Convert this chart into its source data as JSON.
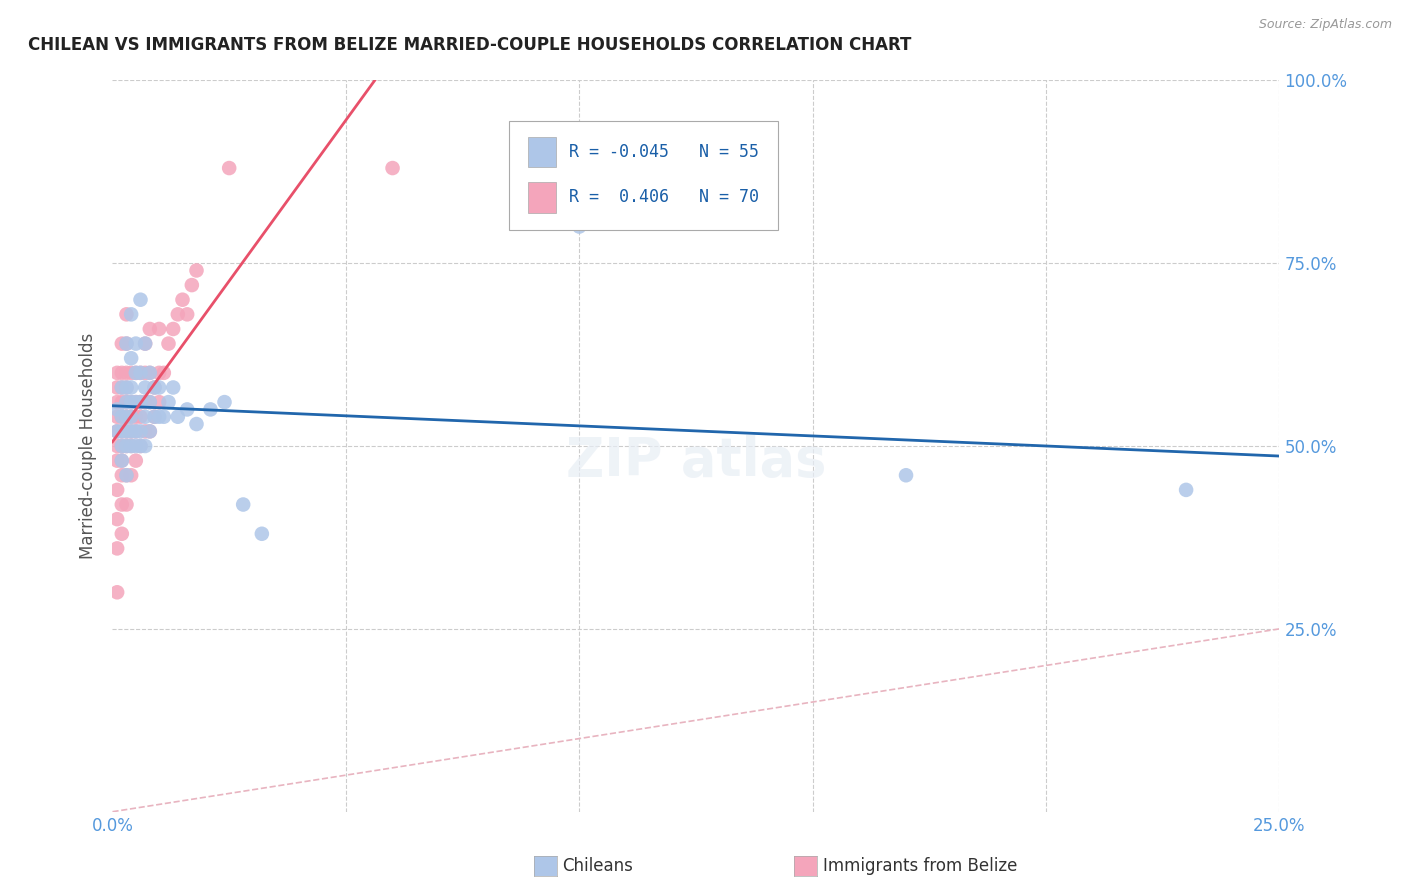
{
  "title": "CHILEAN VS IMMIGRANTS FROM BELIZE MARRIED-COUPLE HOUSEHOLDS CORRELATION CHART",
  "source": "Source: ZipAtlas.com",
  "ylabel": "Married-couple Households",
  "xlim": [
    0.0,
    0.25
  ],
  "ylim": [
    0.0,
    1.0
  ],
  "legend_R_chileans": "-0.045",
  "legend_N_chileans": "55",
  "legend_R_belize": "0.406",
  "legend_N_belize": "70",
  "chilean_color": "#aec6e8",
  "belize_color": "#f4a5bb",
  "chilean_line_color": "#2166ac",
  "belize_line_color": "#e8506a",
  "diagonal_color": "#e8b4c0",
  "background_color": "#ffffff",
  "grid_color": "#cccccc",
  "chileans_x": [
    0.001,
    0.001,
    0.002,
    0.002,
    0.002,
    0.002,
    0.002,
    0.003,
    0.003,
    0.003,
    0.003,
    0.003,
    0.003,
    0.003,
    0.004,
    0.004,
    0.004,
    0.004,
    0.004,
    0.004,
    0.004,
    0.005,
    0.005,
    0.005,
    0.005,
    0.005,
    0.006,
    0.006,
    0.006,
    0.006,
    0.006,
    0.007,
    0.007,
    0.007,
    0.007,
    0.008,
    0.008,
    0.008,
    0.009,
    0.009,
    0.01,
    0.01,
    0.011,
    0.012,
    0.013,
    0.014,
    0.016,
    0.018,
    0.021,
    0.024,
    0.028,
    0.032,
    0.1,
    0.17,
    0.23
  ],
  "chileans_y": [
    0.52,
    0.55,
    0.48,
    0.5,
    0.52,
    0.54,
    0.58,
    0.46,
    0.5,
    0.52,
    0.54,
    0.56,
    0.58,
    0.64,
    0.5,
    0.52,
    0.54,
    0.56,
    0.58,
    0.62,
    0.68,
    0.5,
    0.52,
    0.56,
    0.6,
    0.64,
    0.5,
    0.52,
    0.56,
    0.6,
    0.7,
    0.5,
    0.54,
    0.58,
    0.64,
    0.52,
    0.56,
    0.6,
    0.54,
    0.58,
    0.54,
    0.58,
    0.54,
    0.56,
    0.58,
    0.54,
    0.55,
    0.53,
    0.55,
    0.56,
    0.42,
    0.38,
    0.8,
    0.46,
    0.44
  ],
  "belize_x": [
    0.001,
    0.001,
    0.001,
    0.001,
    0.001,
    0.001,
    0.001,
    0.001,
    0.001,
    0.001,
    0.001,
    0.002,
    0.002,
    0.002,
    0.002,
    0.002,
    0.002,
    0.002,
    0.002,
    0.002,
    0.002,
    0.002,
    0.003,
    0.003,
    0.003,
    0.003,
    0.003,
    0.003,
    0.003,
    0.003,
    0.003,
    0.003,
    0.004,
    0.004,
    0.004,
    0.004,
    0.004,
    0.004,
    0.005,
    0.005,
    0.005,
    0.005,
    0.005,
    0.006,
    0.006,
    0.006,
    0.006,
    0.007,
    0.007,
    0.007,
    0.007,
    0.008,
    0.008,
    0.008,
    0.008,
    0.009,
    0.009,
    0.01,
    0.01,
    0.01,
    0.011,
    0.012,
    0.013,
    0.014,
    0.015,
    0.016,
    0.017,
    0.018,
    0.025,
    0.06
  ],
  "belize_y": [
    0.3,
    0.36,
    0.4,
    0.44,
    0.48,
    0.5,
    0.52,
    0.54,
    0.56,
    0.58,
    0.6,
    0.38,
    0.42,
    0.46,
    0.48,
    0.5,
    0.52,
    0.54,
    0.56,
    0.58,
    0.6,
    0.64,
    0.42,
    0.46,
    0.5,
    0.52,
    0.54,
    0.56,
    0.58,
    0.6,
    0.64,
    0.68,
    0.46,
    0.5,
    0.52,
    0.54,
    0.56,
    0.6,
    0.48,
    0.52,
    0.54,
    0.56,
    0.6,
    0.5,
    0.54,
    0.56,
    0.6,
    0.52,
    0.56,
    0.6,
    0.64,
    0.52,
    0.56,
    0.6,
    0.66,
    0.54,
    0.58,
    0.56,
    0.6,
    0.66,
    0.6,
    0.64,
    0.66,
    0.68,
    0.7,
    0.68,
    0.72,
    0.74,
    0.88,
    0.88
  ]
}
